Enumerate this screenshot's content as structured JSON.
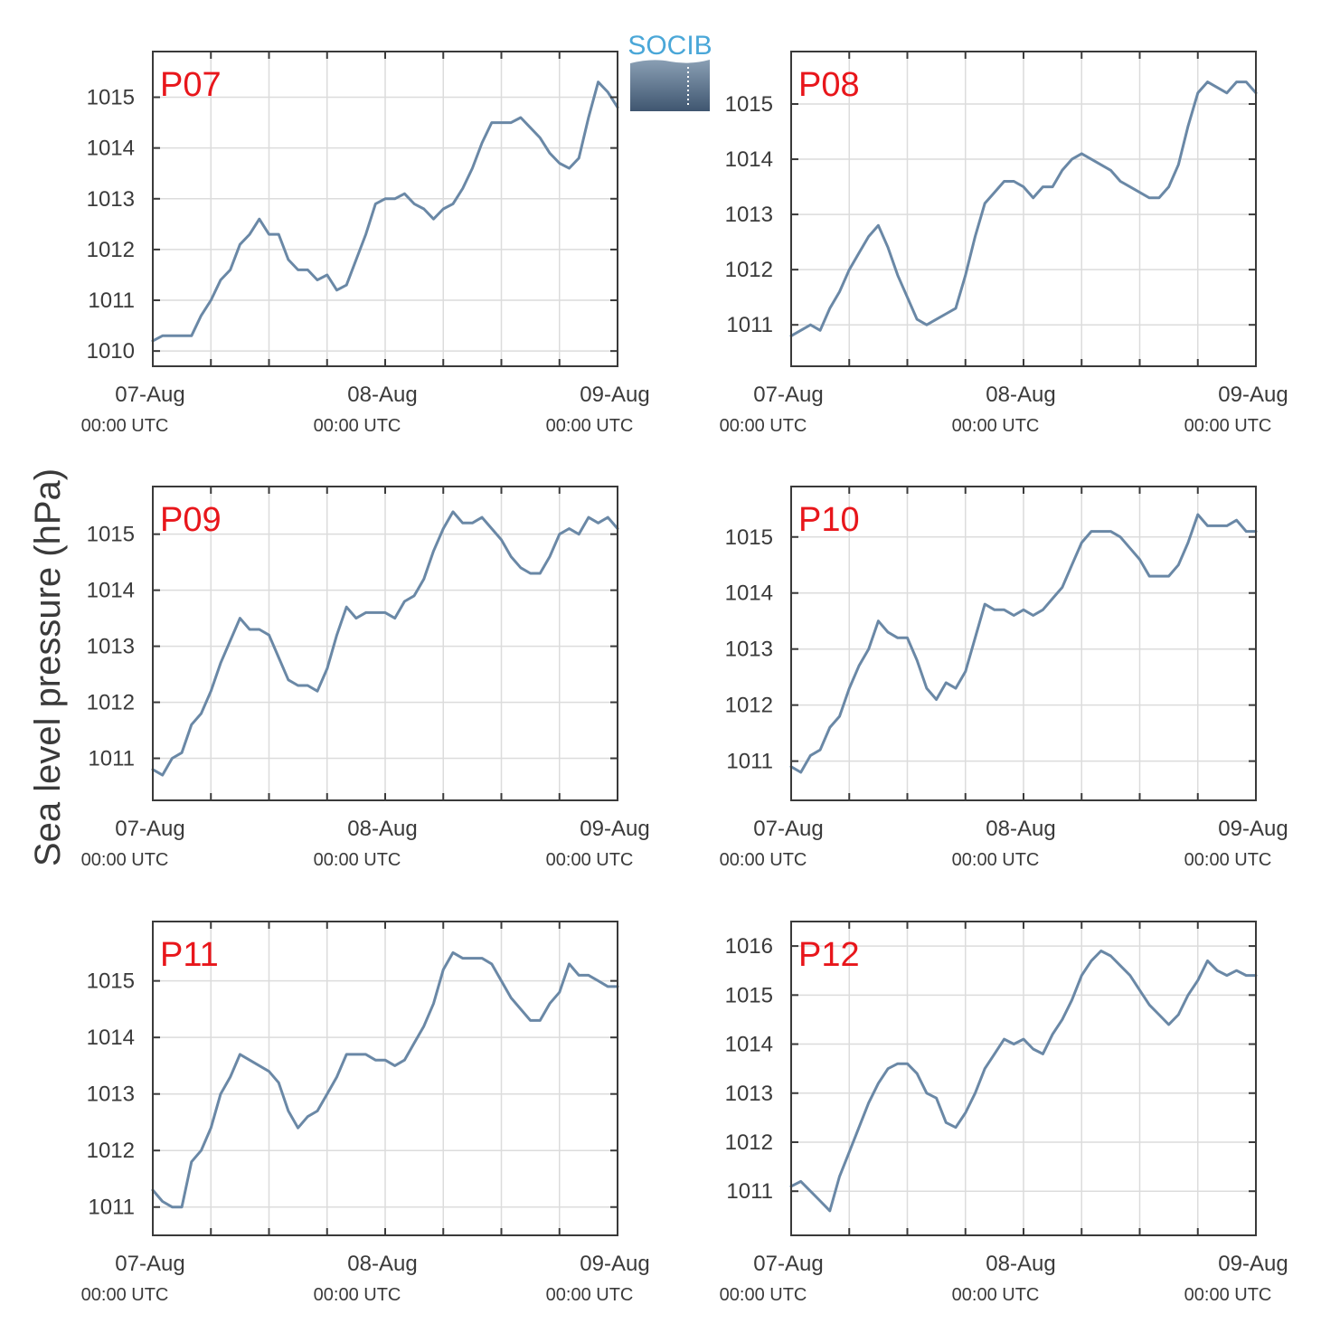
{
  "figure": {
    "ylabel": "Sea level pressure (hPa)",
    "logo_text": "SOCIB",
    "series_color": "#6a88a6",
    "panel_label_color": "#e8161b",
    "grid_color": "#dcdcdc",
    "axis_color": "#3a3a3a"
  },
  "chart_data": [
    {
      "type": "line",
      "label": "P07",
      "xlim": [
        0,
        48
      ],
      "ylim": [
        1009.7,
        1015.9
      ],
      "yticks": [
        1010,
        1011,
        1012,
        1013,
        1014,
        1015
      ],
      "x_major_ticks": [
        {
          "hour": 0,
          "date": "07-Aug",
          "time": "00:00 UTC"
        },
        {
          "hour": 24,
          "date": "08-Aug",
          "time": "00:00 UTC"
        },
        {
          "hour": 48,
          "date": "09-Aug",
          "time": "00:00 UTC"
        }
      ],
      "x_minor_ticks": [
        6,
        12,
        18,
        30,
        36,
        42
      ],
      "x_hours": [
        0,
        1,
        2,
        3,
        4,
        5,
        6,
        7,
        8,
        9,
        10,
        11,
        12,
        13,
        14,
        15,
        16,
        17,
        18,
        19,
        20,
        21,
        22,
        23,
        24,
        25,
        26,
        27,
        28,
        29,
        30,
        31,
        32,
        33,
        34,
        35,
        36,
        37,
        38,
        39,
        40,
        41,
        42,
        43,
        44,
        45,
        46,
        47,
        48
      ],
      "values": [
        1010.2,
        1010.3,
        1010.3,
        1010.3,
        1010.3,
        1010.7,
        1011.0,
        1011.4,
        1011.6,
        1012.1,
        1012.3,
        1012.6,
        1012.3,
        1012.3,
        1011.8,
        1011.6,
        1011.6,
        1011.4,
        1011.5,
        1011.2,
        1011.3,
        1011.8,
        1012.3,
        1012.9,
        1013.0,
        1013.0,
        1013.1,
        1012.9,
        1012.8,
        1012.6,
        1012.8,
        1012.9,
        1013.2,
        1013.6,
        1014.1,
        1014.5,
        1014.5,
        1014.5,
        1014.6,
        1014.4,
        1014.2,
        1013.9,
        1013.7,
        1013.6,
        1013.8,
        1014.6,
        1015.3,
        1015.1,
        1014.8
      ]
    },
    {
      "type": "line",
      "label": "P08",
      "xlim": [
        0,
        48
      ],
      "ylim": [
        1010.25,
        1015.95
      ],
      "yticks": [
        1011,
        1012,
        1013,
        1014,
        1015
      ],
      "x_major_ticks": [
        {
          "hour": 0,
          "date": "07-Aug",
          "time": "00:00 UTC"
        },
        {
          "hour": 24,
          "date": "08-Aug",
          "time": "00:00 UTC"
        },
        {
          "hour": 48,
          "date": "09-Aug",
          "time": "00:00 UTC"
        }
      ],
      "x_minor_ticks": [
        6,
        12,
        18,
        30,
        36,
        42
      ],
      "x_hours": [
        0,
        1,
        2,
        3,
        4,
        5,
        6,
        7,
        8,
        9,
        10,
        11,
        12,
        13,
        14,
        15,
        16,
        17,
        18,
        19,
        20,
        21,
        22,
        23,
        24,
        25,
        26,
        27,
        28,
        29,
        30,
        31,
        32,
        33,
        34,
        35,
        36,
        37,
        38,
        39,
        40,
        41,
        42,
        43,
        44,
        45,
        46,
        47,
        48
      ],
      "values": [
        1010.8,
        1010.9,
        1011.0,
        1010.9,
        1011.3,
        1011.6,
        1012.0,
        1012.3,
        1012.6,
        1012.8,
        1012.4,
        1011.9,
        1011.5,
        1011.1,
        1011.0,
        1011.1,
        1011.2,
        1011.3,
        1011.9,
        1012.6,
        1013.2,
        1013.4,
        1013.6,
        1013.6,
        1013.5,
        1013.3,
        1013.5,
        1013.5,
        1013.8,
        1014.0,
        1014.1,
        1014.0,
        1013.9,
        1013.8,
        1013.6,
        1013.5,
        1013.4,
        1013.3,
        1013.3,
        1013.5,
        1013.9,
        1014.6,
        1015.2,
        1015.4,
        1015.3,
        1015.2,
        1015.4,
        1015.4,
        1015.2
      ]
    },
    {
      "type": "line",
      "label": "P09",
      "xlim": [
        0,
        48
      ],
      "ylim": [
        1010.25,
        1015.85
      ],
      "yticks": [
        1011,
        1012,
        1013,
        1014,
        1015
      ],
      "x_major_ticks": [
        {
          "hour": 0,
          "date": "07-Aug",
          "time": "00:00 UTC"
        },
        {
          "hour": 24,
          "date": "08-Aug",
          "time": "00:00 UTC"
        },
        {
          "hour": 48,
          "date": "09-Aug",
          "time": "00:00 UTC"
        }
      ],
      "x_minor_ticks": [
        6,
        12,
        18,
        30,
        36,
        42
      ],
      "x_hours": [
        0,
        1,
        2,
        3,
        4,
        5,
        6,
        7,
        8,
        9,
        10,
        11,
        12,
        13,
        14,
        15,
        16,
        17,
        18,
        19,
        20,
        21,
        22,
        23,
        24,
        25,
        26,
        27,
        28,
        29,
        30,
        31,
        32,
        33,
        34,
        35,
        36,
        37,
        38,
        39,
        40,
        41,
        42,
        43,
        44,
        45,
        46,
        47,
        48
      ],
      "values": [
        1010.8,
        1010.7,
        1011.0,
        1011.1,
        1011.6,
        1011.8,
        1012.2,
        1012.7,
        1013.1,
        1013.5,
        1013.3,
        1013.3,
        1013.2,
        1012.8,
        1012.4,
        1012.3,
        1012.3,
        1012.2,
        1012.6,
        1013.2,
        1013.7,
        1013.5,
        1013.6,
        1013.6,
        1013.6,
        1013.5,
        1013.8,
        1013.9,
        1014.2,
        1014.7,
        1015.1,
        1015.4,
        1015.2,
        1015.2,
        1015.3,
        1015.1,
        1014.9,
        1014.6,
        1014.4,
        1014.3,
        1014.3,
        1014.6,
        1015.0,
        1015.1,
        1015.0,
        1015.3,
        1015.2,
        1015.3,
        1015.1
      ]
    },
    {
      "type": "line",
      "label": "P10",
      "xlim": [
        0,
        48
      ],
      "ylim": [
        1010.3,
        1015.9
      ],
      "yticks": [
        1011,
        1012,
        1013,
        1014,
        1015
      ],
      "x_major_ticks": [
        {
          "hour": 0,
          "date": "07-Aug",
          "time": "00:00 UTC"
        },
        {
          "hour": 24,
          "date": "08-Aug",
          "time": "00:00 UTC"
        },
        {
          "hour": 48,
          "date": "09-Aug",
          "time": "00:00 UTC"
        }
      ],
      "x_minor_ticks": [
        6,
        12,
        18,
        30,
        36,
        42
      ],
      "x_hours": [
        0,
        1,
        2,
        3,
        4,
        5,
        6,
        7,
        8,
        9,
        10,
        11,
        12,
        13,
        14,
        15,
        16,
        17,
        18,
        19,
        20,
        21,
        22,
        23,
        24,
        25,
        26,
        27,
        28,
        29,
        30,
        31,
        32,
        33,
        34,
        35,
        36,
        37,
        38,
        39,
        40,
        41,
        42,
        43,
        44,
        45,
        46,
        47,
        48
      ],
      "values": [
        1010.9,
        1010.8,
        1011.1,
        1011.2,
        1011.6,
        1011.8,
        1012.3,
        1012.7,
        1013.0,
        1013.5,
        1013.3,
        1013.2,
        1013.2,
        1012.8,
        1012.3,
        1012.1,
        1012.4,
        1012.3,
        1012.6,
        1013.2,
        1013.8,
        1013.7,
        1013.7,
        1013.6,
        1013.7,
        1013.6,
        1013.7,
        1013.9,
        1014.1,
        1014.5,
        1014.9,
        1015.1,
        1015.1,
        1015.1,
        1015.0,
        1014.8,
        1014.6,
        1014.3,
        1014.3,
        1014.3,
        1014.5,
        1014.9,
        1015.4,
        1015.2,
        1015.2,
        1015.2,
        1015.3,
        1015.1,
        1015.1
      ]
    },
    {
      "type": "line",
      "label": "P11",
      "xlim": [
        0,
        48
      ],
      "ylim": [
        1010.5,
        1016.05
      ],
      "yticks": [
        1011,
        1012,
        1013,
        1014,
        1015
      ],
      "x_major_ticks": [
        {
          "hour": 0,
          "date": "07-Aug",
          "time": "00:00 UTC"
        },
        {
          "hour": 24,
          "date": "08-Aug",
          "time": "00:00 UTC"
        },
        {
          "hour": 48,
          "date": "09-Aug",
          "time": "00:00 UTC"
        }
      ],
      "x_minor_ticks": [
        6,
        12,
        18,
        30,
        36,
        42
      ],
      "x_hours": [
        0,
        1,
        2,
        3,
        4,
        5,
        6,
        7,
        8,
        9,
        10,
        11,
        12,
        13,
        14,
        15,
        16,
        17,
        18,
        19,
        20,
        21,
        22,
        23,
        24,
        25,
        26,
        27,
        28,
        29,
        30,
        31,
        32,
        33,
        34,
        35,
        36,
        37,
        38,
        39,
        40,
        41,
        42,
        43,
        44,
        45,
        46,
        47,
        48
      ],
      "values": [
        1011.3,
        1011.1,
        1011.0,
        1011.0,
        1011.8,
        1012.0,
        1012.4,
        1013.0,
        1013.3,
        1013.7,
        1013.6,
        1013.5,
        1013.4,
        1013.2,
        1012.7,
        1012.4,
        1012.6,
        1012.7,
        1013.0,
        1013.3,
        1013.7,
        1013.7,
        1013.7,
        1013.6,
        1013.6,
        1013.5,
        1013.6,
        1013.9,
        1014.2,
        1014.6,
        1015.2,
        1015.5,
        1015.4,
        1015.4,
        1015.4,
        1015.3,
        1015.0,
        1014.7,
        1014.5,
        1014.3,
        1014.3,
        1014.6,
        1014.8,
        1015.3,
        1015.1,
        1015.1,
        1015.0,
        1014.9,
        1014.9
      ]
    },
    {
      "type": "line",
      "label": "P12",
      "xlim": [
        0,
        48
      ],
      "ylim": [
        1010.1,
        1016.5
      ],
      "yticks": [
        1011,
        1012,
        1013,
        1014,
        1015,
        1016
      ],
      "x_major_ticks": [
        {
          "hour": 0,
          "date": "07-Aug",
          "time": "00:00 UTC"
        },
        {
          "hour": 24,
          "date": "08-Aug",
          "time": "00:00 UTC"
        },
        {
          "hour": 48,
          "date": "09-Aug",
          "time": "00:00 UTC"
        }
      ],
      "x_minor_ticks": [
        6,
        12,
        18,
        30,
        36,
        42
      ],
      "x_hours": [
        0,
        1,
        2,
        3,
        4,
        5,
        6,
        7,
        8,
        9,
        10,
        11,
        12,
        13,
        14,
        15,
        16,
        17,
        18,
        19,
        20,
        21,
        22,
        23,
        24,
        25,
        26,
        27,
        28,
        29,
        30,
        31,
        32,
        33,
        34,
        35,
        36,
        37,
        38,
        39,
        40,
        41,
        42,
        43,
        44,
        45,
        46,
        47,
        48
      ],
      "values": [
        1011.1,
        1011.2,
        1011.0,
        1010.8,
        1010.6,
        1011.3,
        1011.8,
        1012.3,
        1012.8,
        1013.2,
        1013.5,
        1013.6,
        1013.6,
        1013.4,
        1013.0,
        1012.9,
        1012.4,
        1012.3,
        1012.6,
        1013.0,
        1013.5,
        1013.8,
        1014.1,
        1014.0,
        1014.1,
        1013.9,
        1013.8,
        1014.2,
        1014.5,
        1014.9,
        1015.4,
        1015.7,
        1015.9,
        1015.8,
        1015.6,
        1015.4,
        1015.1,
        1014.8,
        1014.6,
        1014.4,
        1014.6,
        1015.0,
        1015.3,
        1015.7,
        1015.5,
        1015.4,
        1015.5,
        1015.4,
        1015.4
      ]
    }
  ]
}
